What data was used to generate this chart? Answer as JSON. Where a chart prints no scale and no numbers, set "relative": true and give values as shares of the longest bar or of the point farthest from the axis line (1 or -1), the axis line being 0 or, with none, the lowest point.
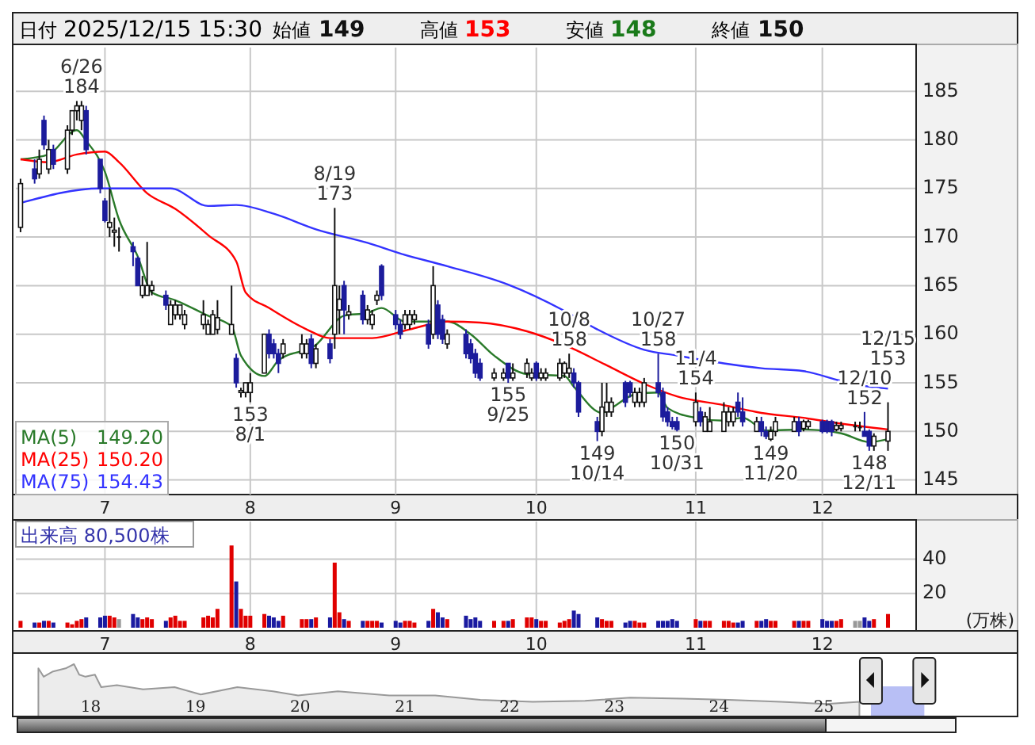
{
  "chart_data": [
    {
      "type": "candlestick",
      "x": [
        "2025-06-13",
        "2025-06-16",
        "2025-06-17",
        "2025-06-18",
        "2025-06-19",
        "2025-06-20",
        "2025-06-23",
        "2025-06-24",
        "2025-06-25",
        "2025-06-26",
        "2025-06-27",
        "2025-06-30",
        "2025-07-01",
        "2025-07-02",
        "2025-07-03",
        "2025-07-04",
        "2025-07-07",
        "2025-07-08",
        "2025-07-09",
        "2025-07-10",
        "2025-07-11",
        "2025-07-14",
        "2025-07-15",
        "2025-07-16",
        "2025-07-17",
        "2025-07-18",
        "2025-07-22",
        "2025-07-23",
        "2025-07-24",
        "2025-07-25",
        "2025-07-28",
        "2025-07-29",
        "2025-07-30",
        "2025-07-31",
        "2025-08-01",
        "2025-08-04",
        "2025-08-05",
        "2025-08-06",
        "2025-08-07",
        "2025-08-08",
        "2025-08-12",
        "2025-08-13",
        "2025-08-14",
        "2025-08-15",
        "2025-08-18",
        "2025-08-19",
        "2025-08-20",
        "2025-08-21",
        "2025-08-22",
        "2025-08-25",
        "2025-08-26",
        "2025-08-27",
        "2025-08-28",
        "2025-08-29",
        "2025-09-01",
        "2025-09-02",
        "2025-09-03",
        "2025-09-04",
        "2025-09-05",
        "2025-09-08",
        "2025-09-09",
        "2025-09-10",
        "2025-09-11",
        "2025-09-12",
        "2025-09-16",
        "2025-09-17",
        "2025-09-18",
        "2025-09-19",
        "2025-09-22",
        "2025-09-24",
        "2025-09-25",
        "2025-09-26",
        "2025-09-29",
        "2025-09-30",
        "2025-10-01",
        "2025-10-02",
        "2025-10-03",
        "2025-10-06",
        "2025-10-07",
        "2025-10-08",
        "2025-10-09",
        "2025-10-10",
        "2025-10-14",
        "2025-10-15",
        "2025-10-16",
        "2025-10-17",
        "2025-10-20",
        "2025-10-21",
        "2025-10-22",
        "2025-10-23",
        "2025-10-24",
        "2025-10-27",
        "2025-10-28",
        "2025-10-29",
        "2025-10-30",
        "2025-10-31",
        "2025-11-04",
        "2025-11-05",
        "2025-11-06",
        "2025-11-07",
        "2025-11-10",
        "2025-11-11",
        "2025-11-12",
        "2025-11-13",
        "2025-11-14",
        "2025-11-17",
        "2025-11-18",
        "2025-11-19",
        "2025-11-20",
        "2025-11-21",
        "2025-11-25",
        "2025-11-26",
        "2025-11-27",
        "2025-11-28",
        "2025-12-01",
        "2025-12-02",
        "2025-12-03",
        "2025-12-04",
        "2025-12-05",
        "2025-12-08",
        "2025-12-09",
        "2025-12-10",
        "2025-12-11",
        "2025-12-12",
        "2025-12-15"
      ],
      "ohlc": [
        [
          171,
          176,
          170.5,
          175.5
        ],
        [
          177,
          178,
          175.5,
          176
        ],
        [
          176.5,
          179,
          176,
          178
        ],
        [
          182,
          182.5,
          179,
          179.5
        ],
        [
          177,
          180,
          176.5,
          179
        ],
        [
          179,
          179.5,
          177,
          177.5
        ],
        [
          177,
          181.5,
          176.5,
          181
        ],
        [
          181,
          183,
          180.5,
          183
        ],
        [
          183,
          184,
          182,
          183.5
        ],
        [
          182,
          184,
          181,
          183.5
        ],
        [
          183,
          183.5,
          178.5,
          179
        ],
        [
          178,
          178,
          174.5,
          175
        ],
        [
          173.7,
          174,
          171.5,
          171.7
        ],
        [
          171,
          175,
          170,
          171.5
        ],
        [
          170.5,
          172,
          169,
          170.7
        ],
        [
          170,
          171,
          168.5,
          170
        ],
        [
          169,
          169.5,
          167,
          168.5
        ],
        [
          167.8,
          168,
          165,
          165
        ],
        [
          164,
          166,
          163.7,
          165
        ],
        [
          164,
          169.5,
          164,
          165
        ],
        [
          164.5,
          165.5,
          164,
          165
        ],
        [
          164,
          164.5,
          162.5,
          163
        ],
        [
          161,
          163.5,
          161,
          163
        ],
        [
          162,
          163.5,
          161.5,
          163
        ],
        [
          162,
          163,
          161.5,
          163
        ],
        [
          161,
          162.5,
          160.5,
          162
        ],
        [
          161,
          163.5,
          160.5,
          162
        ],
        [
          160,
          161.5,
          160,
          161
        ],
        [
          160,
          162.5,
          160,
          162
        ],
        [
          160.5,
          163.5,
          160,
          161.7
        ],
        [
          160,
          165,
          160,
          161
        ],
        [
          157.5,
          158,
          154.5,
          155
        ],
        [
          154,
          154.5,
          153.5,
          154.2
        ],
        [
          154,
          155,
          153.5,
          155
        ],
        [
          154,
          156,
          153,
          155
        ],
        [
          156,
          160,
          156,
          160
        ],
        [
          160,
          160.5,
          157.5,
          158
        ],
        [
          159,
          159.5,
          157.5,
          158
        ],
        [
          158,
          158.5,
          156,
          157
        ],
        [
          158,
          159.5,
          157.5,
          159
        ],
        [
          158,
          160,
          157.5,
          159
        ],
        [
          158,
          159.5,
          157.5,
          159
        ],
        [
          159.5,
          160,
          156.5,
          157
        ],
        [
          157,
          159,
          156.5,
          158.5
        ],
        [
          159,
          159.5,
          157,
          157.5
        ],
        [
          160,
          173,
          158.5,
          165
        ],
        [
          162.5,
          165,
          160,
          163.6
        ],
        [
          165,
          165.5,
          160,
          162.5
        ],
        [
          162,
          163,
          161.5,
          162.3
        ],
        [
          164,
          164.5,
          161,
          161.5
        ],
        [
          161.5,
          163,
          161,
          162.5
        ],
        [
          161,
          162.5,
          160.5,
          162
        ],
        [
          163.5,
          164.5,
          163,
          164
        ],
        [
          167,
          167.2,
          163.5,
          164
        ],
        [
          162,
          162.5,
          160.5,
          161
        ],
        [
          161,
          161.5,
          159.5,
          160
        ],
        [
          161,
          162.5,
          160.5,
          162
        ],
        [
          161,
          162.5,
          160.5,
          162
        ],
        [
          161.5,
          162.5,
          161,
          162
        ],
        [
          161,
          161.5,
          158.5,
          159
        ],
        [
          160,
          167,
          159.5,
          165
        ],
        [
          163,
          163.5,
          159.5,
          160
        ],
        [
          161.5,
          162,
          159,
          159.5
        ],
        [
          159,
          160.5,
          158.5,
          160
        ],
        [
          160,
          160.5,
          157.5,
          158
        ],
        [
          159,
          159.5,
          157,
          157.5
        ],
        [
          158,
          158.5,
          155.5,
          156
        ],
        [
          157,
          157.5,
          155.2,
          155.5
        ],
        [
          155.5,
          156.5,
          155.2,
          156
        ],
        [
          155.5,
          156.5,
          155.2,
          156
        ],
        [
          157,
          157,
          155,
          155.5
        ],
        [
          155.5,
          157,
          155.2,
          156
        ],
        [
          156,
          157.5,
          155.5,
          157
        ],
        [
          155.5,
          156.5,
          155.2,
          156
        ],
        [
          157,
          157.2,
          155.2,
          155.5
        ],
        [
          155.5,
          156.5,
          155.2,
          156
        ],
        [
          155.5,
          156.5,
          155.2,
          156
        ],
        [
          155.5,
          157.5,
          155.2,
          157
        ],
        [
          156,
          157.2,
          155.5,
          157
        ],
        [
          156,
          158,
          155.5,
          156.5
        ],
        [
          156,
          156.5,
          154.5,
          155
        ],
        [
          155,
          155.2,
          151.5,
          152
        ],
        [
          151,
          151.5,
          149,
          150
        ],
        [
          150,
          155,
          149.5,
          152.5
        ],
        [
          152,
          155,
          151.5,
          153
        ],
        [
          152,
          153.5,
          151.5,
          153
        ],
        [
          155,
          155.2,
          152.5,
          153
        ],
        [
          155,
          155.2,
          153.5,
          154
        ],
        [
          153,
          154.5,
          152.5,
          154
        ],
        [
          153,
          154.5,
          152.5,
          154
        ],
        [
          153,
          155.5,
          152.5,
          155
        ],
        [
          155,
          158,
          153.5,
          154
        ],
        [
          154,
          154.5,
          151,
          151.5
        ],
        [
          152,
          152.5,
          150.5,
          151
        ],
        [
          151,
          151.5,
          150.2,
          150.5
        ],
        [
          151,
          151.5,
          150,
          150.2
        ],
        [
          151,
          154,
          150.5,
          153
        ],
        [
          152,
          152.5,
          150.5,
          151
        ],
        [
          150,
          152,
          150,
          151.5
        ],
        [
          150,
          152.5,
          150,
          151
        ],
        [
          150,
          153,
          150,
          152
        ],
        [
          151,
          152.5,
          150.5,
          152
        ],
        [
          151,
          152.5,
          150.5,
          152
        ],
        [
          153,
          154,
          151.5,
          152
        ],
        [
          152,
          153.5,
          150.5,
          151
        ],
        [
          150,
          151.5,
          150,
          151
        ],
        [
          151,
          151.5,
          149.5,
          150
        ],
        [
          150,
          150.5,
          149.2,
          149.5
        ],
        [
          149.2,
          150.5,
          149,
          150
        ],
        [
          150,
          151.5,
          149.5,
          151
        ],
        [
          150,
          151.5,
          150,
          151
        ],
        [
          151,
          151.5,
          149.5,
          150
        ],
        [
          150.3,
          151.2,
          150,
          151
        ],
        [
          150.5,
          151.2,
          150.2,
          151
        ],
        [
          151,
          151.2,
          149.8,
          150
        ],
        [
          151,
          151.2,
          149.8,
          150
        ],
        [
          151,
          151.2,
          149.5,
          150
        ],
        [
          150.2,
          151,
          150,
          150.6
        ],
        [
          150.3,
          151,
          150,
          150.6
        ],
        [
          150.5,
          151,
          150,
          150.5
        ],
        [
          150.4,
          151,
          150,
          150.4
        ],
        [
          150,
          152,
          149.5,
          149.5
        ],
        [
          150,
          150.2,
          148,
          148.5
        ],
        [
          148.5,
          149.8,
          148,
          149.5
        ],
        [
          149,
          153,
          148,
          150
        ]
      ],
      "series": [
        {
          "type": "line",
          "name": "MA(5)",
          "color": "#2a7a2a",
          "x": [
            "2025-06-13",
            "2025-06-19",
            "2025-06-25",
            "2025-06-27",
            "2025-07-01",
            "2025-07-04",
            "2025-07-08",
            "2025-07-11",
            "2025-07-16",
            "2025-07-23",
            "2025-07-28",
            "2025-07-30",
            "2025-08-04",
            "2025-08-07",
            "2025-08-15",
            "2025-08-21",
            "2025-08-26",
            "2025-08-29",
            "2025-09-03",
            "2025-09-12",
            "2025-09-17",
            "2025-09-22",
            "2025-09-29",
            "2025-10-07",
            "2025-10-09",
            "2025-10-15",
            "2025-10-17",
            "2025-10-22",
            "2025-10-27",
            "2025-10-29",
            "2025-11-04",
            "2025-11-10",
            "2025-11-14",
            "2025-11-19",
            "2025-11-27",
            "2025-12-05",
            "2025-12-11",
            "2025-12-15"
          ],
          "values": [
            178,
            178.5,
            181,
            179.9,
            176.7,
            171.8,
            168,
            164.3,
            163.5,
            161.9,
            160.8,
            157.8,
            155.7,
            157.3,
            158.9,
            161.9,
            162.2,
            162.7,
            161.3,
            161.3,
            160,
            157.8,
            155.9,
            155.7,
            154.6,
            151.9,
            152.4,
            153.8,
            154,
            152.4,
            151.4,
            151.1,
            151.4,
            150.1,
            150.2,
            149.8,
            148.9,
            149.2
          ]
        },
        {
          "type": "line",
          "name": "MA(25)",
          "color": "#ff0000",
          "x": [
            "2025-06-13",
            "2025-06-19",
            "2025-06-25",
            "2025-07-01",
            "2025-07-04",
            "2025-07-10",
            "2025-07-16",
            "2025-07-23",
            "2025-07-29",
            "2025-07-31",
            "2025-08-05",
            "2025-08-13",
            "2025-08-18",
            "2025-08-27",
            "2025-09-04",
            "2025-09-12",
            "2025-09-19",
            "2025-09-29",
            "2025-10-07",
            "2025-10-16",
            "2025-10-24",
            "2025-10-31",
            "2025-11-10",
            "2025-11-18",
            "2025-11-27",
            "2025-12-05",
            "2025-12-15"
          ],
          "values": [
            178,
            177.7,
            178.5,
            178.8,
            177.7,
            174.5,
            172.9,
            170.2,
            167.5,
            164.3,
            162.7,
            160.5,
            159.6,
            159.6,
            160.5,
            161.3,
            161.2,
            160.3,
            158.9,
            156.8,
            154.9,
            153.6,
            152.7,
            151.9,
            151.4,
            150.8,
            150.2
          ]
        },
        {
          "type": "line",
          "name": "MA(75)",
          "color": "#3333ff",
          "x": [
            "2025-06-13",
            "2025-06-30",
            "2025-07-09",
            "2025-07-15",
            "2025-07-23",
            "2025-07-29",
            "2025-08-06",
            "2025-08-15",
            "2025-08-26",
            "2025-09-02",
            "2025-09-12",
            "2025-09-25",
            "2025-10-07",
            "2025-10-14",
            "2025-10-24",
            "2025-10-31",
            "2025-11-10",
            "2025-11-18",
            "2025-11-27",
            "2025-12-05",
            "2025-12-11",
            "2025-12-15"
          ],
          "values": [
            173.5,
            175,
            175,
            175,
            173.2,
            173.3,
            172.4,
            170.8,
            169.4,
            168.3,
            167,
            165.1,
            162.4,
            160.5,
            158.4,
            157.8,
            157,
            156.5,
            156.2,
            155.2,
            154.6,
            154.4
          ]
        }
      ],
      "xlim": [
        "2025-06-12",
        "2025-12-21"
      ],
      "ylim": [
        143.5,
        189.5
      ],
      "yticks": [
        145,
        150,
        155,
        160,
        165,
        170,
        175,
        180,
        185
      ],
      "xticks": [
        {
          "value": "2025-07-01",
          "label": "7"
        },
        {
          "value": "2025-08-01",
          "label": "8"
        },
        {
          "value": "2025-09-01",
          "label": "9"
        },
        {
          "value": "2025-10-01",
          "label": "10"
        },
        {
          "value": "2025-11-04",
          "label": "11"
        },
        {
          "value": "2025-12-01",
          "label": "12"
        }
      ],
      "grid": true,
      "legend": "bottom left",
      "annotations": [
        "日付",
        "2025/12/15 15:30",
        "始値",
        "149",
        "高値",
        "153",
        "安値",
        "148",
        "終値",
        "150",
        "149.20",
        "150.20",
        "154.43",
        {
          "text": "6/26",
          "x": "2025-06-26",
          "y": 184
        },
        {
          "text": "184",
          "x": "2025-06-26",
          "y": 184
        },
        {
          "text": "153",
          "x": "2025-08-01",
          "y": 153
        },
        {
          "text": "8/1",
          "x": "2025-08-01",
          "y": 153
        },
        {
          "text": "8/19",
          "x": "2025-08-19",
          "y": 173
        },
        {
          "text": "173",
          "x": "2025-08-19",
          "y": 173
        },
        {
          "text": "155",
          "x": "2025-09-25",
          "y": 155
        },
        {
          "text": "9/25",
          "x": "2025-09-25",
          "y": 155
        },
        {
          "text": "10/8",
          "x": "2025-10-08",
          "y": 158
        },
        {
          "text": "158",
          "x": "2025-10-08",
          "y": 158
        },
        {
          "text": "149",
          "x": "2025-10-14",
          "y": 149
        },
        {
          "text": "10/14",
          "x": "2025-10-14",
          "y": 149
        },
        {
          "text": "10/27",
          "x": "2025-10-27",
          "y": 158
        },
        {
          "text": "158",
          "x": "2025-10-27",
          "y": 158
        },
        {
          "text": "150",
          "x": "2025-10-31",
          "y": 150
        },
        {
          "text": "10/31",
          "x": "2025-10-31",
          "y": 150
        },
        {
          "text": "11/4",
          "x": "2025-11-04",
          "y": 154
        },
        {
          "text": "154",
          "x": "2025-11-04",
          "y": 154
        },
        {
          "text": "149",
          "x": "2025-11-20",
          "y": 149
        },
        {
          "text": "11/20",
          "x": "2025-11-20",
          "y": 149
        },
        {
          "text": "12/10",
          "x": "2025-12-10",
          "y": 152
        },
        {
          "text": "152",
          "x": "2025-12-10",
          "y": 152
        },
        {
          "text": "148",
          "x": "2025-12-11",
          "y": 148
        },
        {
          "text": "12/11",
          "x": "2025-12-11",
          "y": 148
        },
        {
          "text": "12/15",
          "x": "2025-12-15",
          "y": 153
        },
        {
          "text": "153",
          "x": "2025-12-15",
          "y": 153
        }
      ]
    },
    {
      "type": "bar",
      "title": "出来高 80,500株",
      "ylabel": "(万株)",
      "x": [
        "2025-06-13",
        "2025-06-16",
        "2025-06-17",
        "2025-06-18",
        "2025-06-19",
        "2025-06-20",
        "2025-06-23",
        "2025-06-24",
        "2025-06-25",
        "2025-06-26",
        "2025-06-27",
        "2025-06-30",
        "2025-07-01",
        "2025-07-02",
        "2025-07-03",
        "2025-07-04",
        "2025-07-07",
        "2025-07-08",
        "2025-07-09",
        "2025-07-10",
        "2025-07-11",
        "2025-07-14",
        "2025-07-15",
        "2025-07-16",
        "2025-07-17",
        "2025-07-18",
        "2025-07-22",
        "2025-07-23",
        "2025-07-24",
        "2025-07-25",
        "2025-07-28",
        "2025-07-29",
        "2025-07-30",
        "2025-07-31",
        "2025-08-01",
        "2025-08-04",
        "2025-08-05",
        "2025-08-06",
        "2025-08-07",
        "2025-08-08",
        "2025-08-12",
        "2025-08-13",
        "2025-08-14",
        "2025-08-15",
        "2025-08-18",
        "2025-08-19",
        "2025-08-20",
        "2025-08-21",
        "2025-08-22",
        "2025-08-25",
        "2025-08-26",
        "2025-08-27",
        "2025-08-28",
        "2025-08-29",
        "2025-09-01",
        "2025-09-02",
        "2025-09-03",
        "2025-09-04",
        "2025-09-05",
        "2025-09-08",
        "2025-09-09",
        "2025-09-10",
        "2025-09-11",
        "2025-09-12",
        "2025-09-16",
        "2025-09-17",
        "2025-09-18",
        "2025-09-19",
        "2025-09-22",
        "2025-09-24",
        "2025-09-25",
        "2025-09-26",
        "2025-09-29",
        "2025-09-30",
        "2025-10-01",
        "2025-10-02",
        "2025-10-03",
        "2025-10-06",
        "2025-10-07",
        "2025-10-08",
        "2025-10-09",
        "2025-10-10",
        "2025-10-14",
        "2025-10-15",
        "2025-10-16",
        "2025-10-17",
        "2025-10-20",
        "2025-10-21",
        "2025-10-22",
        "2025-10-23",
        "2025-10-24",
        "2025-10-27",
        "2025-10-28",
        "2025-10-29",
        "2025-10-30",
        "2025-10-31",
        "2025-11-04",
        "2025-11-05",
        "2025-11-06",
        "2025-11-07",
        "2025-11-10",
        "2025-11-11",
        "2025-11-12",
        "2025-11-13",
        "2025-11-14",
        "2025-11-17",
        "2025-11-18",
        "2025-11-19",
        "2025-11-20",
        "2025-11-21",
        "2025-11-25",
        "2025-11-26",
        "2025-11-27",
        "2025-11-28",
        "2025-12-01",
        "2025-12-02",
        "2025-12-03",
        "2025-12-04",
        "2025-12-05",
        "2025-12-08",
        "2025-12-09",
        "2025-12-10",
        "2025-12-11",
        "2025-12-12",
        "2025-12-15"
      ],
      "values": [
        4,
        3,
        3,
        4,
        4,
        3,
        3,
        2,
        4,
        5,
        6,
        6,
        7,
        7,
        6,
        5,
        8,
        6,
        5,
        6,
        5,
        4,
        6,
        7,
        4,
        4,
        6,
        7,
        6,
        11,
        48,
        27,
        11,
        7,
        7,
        8,
        7,
        6,
        4,
        7,
        5,
        5,
        5,
        6,
        6,
        38,
        9,
        5,
        4,
        4,
        4,
        4,
        4,
        3,
        4,
        3,
        4,
        4,
        3,
        4,
        11,
        9,
        6,
        5,
        7,
        5,
        6,
        4,
        4,
        4,
        4,
        5,
        6,
        6,
        5,
        4,
        4,
        3,
        4,
        5,
        10,
        8,
        6,
        5,
        4,
        4,
        3,
        4,
        4,
        3,
        3,
        4,
        4,
        4,
        5,
        4,
        5,
        4,
        4,
        4,
        4,
        4,
        3,
        3,
        4,
        4,
        4,
        5,
        4,
        4,
        4,
        4,
        4,
        4,
        5,
        4,
        4,
        4,
        5,
        4,
        4,
        6,
        4,
        5,
        8
      ],
      "colors": [
        "#e00000",
        "#1a1aa0",
        "#e00000",
        "#1a1aa0",
        "#e00000",
        "#1a1aa0",
        "#e00000",
        "#e00000",
        "#e00000",
        "#e00000",
        "#1a1aa0",
        "#1a1aa0",
        "#1a1aa0",
        "#e00000",
        "#e00000",
        "#999999",
        "#1a1aa0",
        "#1a1aa0",
        "#e00000",
        "#e00000",
        "#e00000",
        "#1a1aa0",
        "#e00000",
        "#e00000",
        "#e00000",
        "#e00000",
        "#e00000",
        "#e00000",
        "#e00000",
        "#e00000",
        "#e00000",
        "#1a1aa0",
        "#e00000",
        "#e00000",
        "#e00000",
        "#e00000",
        "#1a1aa0",
        "#1a1aa0",
        "#1a1aa0",
        "#e00000",
        "#e00000",
        "#e00000",
        "#1a1aa0",
        "#e00000",
        "#1a1aa0",
        "#e00000",
        "#e00000",
        "#1a1aa0",
        "#e00000",
        "#1a1aa0",
        "#e00000",
        "#e00000",
        "#e00000",
        "#1a1aa0",
        "#1a1aa0",
        "#1a1aa0",
        "#e00000",
        "#e00000",
        "#e00000",
        "#1a1aa0",
        "#e00000",
        "#1a1aa0",
        "#1a1aa0",
        "#e00000",
        "#1a1aa0",
        "#1a1aa0",
        "#1a1aa0",
        "#1a1aa0",
        "#e00000",
        "#e00000",
        "#1a1aa0",
        "#e00000",
        "#e00000",
        "#e00000",
        "#1a1aa0",
        "#e00000",
        "#e00000",
        "#e00000",
        "#e00000",
        "#e00000",
        "#1a1aa0",
        "#1a1aa0",
        "#1a1aa0",
        "#e00000",
        "#e00000",
        "#e00000",
        "#1a1aa0",
        "#1a1aa0",
        "#e00000",
        "#e00000",
        "#e00000",
        "#1a1aa0",
        "#1a1aa0",
        "#1a1aa0",
        "#1a1aa0",
        "#1a1aa0",
        "#e00000",
        "#1a1aa0",
        "#e00000",
        "#e00000",
        "#e00000",
        "#e00000",
        "#e00000",
        "#1a1aa0",
        "#1a1aa0",
        "#e00000",
        "#1a1aa0",
        "#1a1aa0",
        "#e00000",
        "#e00000",
        "#e00000",
        "#1a1aa0",
        "#e00000",
        "#e00000",
        "#1a1aa0",
        "#1a1aa0",
        "#1a1aa0",
        "#e00000",
        "#e00000",
        "#999999",
        "#999999",
        "#1a1aa0",
        "#1a1aa0",
        "#e00000",
        "#e00000"
      ],
      "xlim": [
        "2025-06-12",
        "2025-12-21"
      ],
      "ylim": [
        0,
        62
      ],
      "yticks": [
        20,
        40
      ],
      "xticks": [
        {
          "value": "2025-07-01",
          "label": "7"
        },
        {
          "value": "2025-08-01",
          "label": "8"
        },
        {
          "value": "2025-09-01",
          "label": "9"
        },
        {
          "value": "2025-10-01",
          "label": "10"
        },
        {
          "value": "2025-11-04",
          "label": "11"
        },
        {
          "value": "2025-12-01",
          "label": "12"
        }
      ],
      "grid": true
    },
    {
      "type": "area",
      "relative": true,
      "color": "#999999",
      "x": [
        2017.5,
        2017.55,
        2017.64,
        2017.76,
        2017.84,
        2017.89,
        2017.95,
        2018.04,
        2018.1,
        2018.25,
        2018.5,
        2018.8,
        2019.05,
        2019.4,
        2019.74,
        2019.98,
        2020.36,
        2020.85,
        2021.29,
        2021.72,
        2022.22,
        2022.72,
        2023.15,
        2023.65,
        2024.09,
        2024.59,
        2025.02,
        2025.34
      ],
      "values": [
        0.92,
        0.76,
        0.86,
        0.92,
        1,
        0.8,
        0.76,
        0.8,
        0.56,
        0.6,
        0.52,
        0.56,
        0.42,
        0.56,
        0.48,
        0.4,
        0.48,
        0.4,
        0.4,
        0.32,
        0.28,
        0.3,
        0.36,
        0.34,
        0.32,
        0.28,
        0.24,
        0.28
      ],
      "xlim": [
        2017.3,
        2026.82
      ],
      "xticks": [
        {
          "value": 2018,
          "label": "18"
        },
        {
          "value": 2019,
          "label": "19"
        },
        {
          "value": 2020,
          "label": "20"
        },
        {
          "value": 2021,
          "label": "21"
        },
        {
          "value": 2022,
          "label": "22"
        },
        {
          "value": 2023,
          "label": "23"
        },
        {
          "value": 2024,
          "label": "24"
        },
        {
          "value": 2025,
          "label": "25"
        }
      ],
      "bands": [
        {
          "axis": "x",
          "from": 2025.45,
          "to": 2025.96,
          "color": "#b8bff5"
        }
      ]
    }
  ]
}
